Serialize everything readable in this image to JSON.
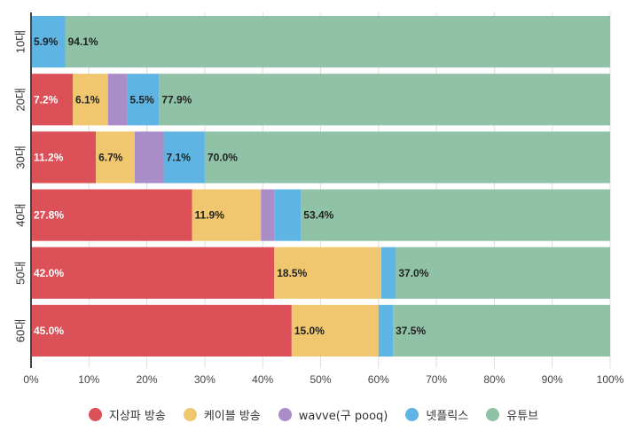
{
  "chart_data": {
    "type": "bar",
    "orientation": "horizontal-stacked-100",
    "categories": [
      "10대",
      "20대",
      "30대",
      "40대",
      "50대",
      "60대"
    ],
    "series": [
      {
        "name": "지상파 방송",
        "color": "#dc5158",
        "label_color": "#ffffff",
        "values": [
          0,
          7.2,
          11.2,
          27.8,
          42.0,
          45.0
        ]
      },
      {
        "name": "케이블 방송",
        "color": "#f0c76e",
        "label_color": "#222222",
        "values": [
          0,
          6.1,
          6.7,
          11.9,
          18.5,
          15.0
        ]
      },
      {
        "name": "wavve(구 pooq)",
        "color": "#a98cc8",
        "label_color": "#222222",
        "values": [
          0,
          3.3,
          5.0,
          2.3,
          0,
          0
        ]
      },
      {
        "name": "넷플릭스",
        "color": "#5eb4e3",
        "label_color": "#222222",
        "values": [
          5.9,
          5.5,
          7.1,
          4.6,
          2.5,
          2.5
        ]
      },
      {
        "name": "유튜브",
        "color": "#8fc2a7",
        "label_color": "#222222",
        "values": [
          94.1,
          77.9,
          70.0,
          53.4,
          37.0,
          37.5
        ]
      }
    ],
    "xticks": [
      "0%",
      "10%",
      "20%",
      "30%",
      "40%",
      "50%",
      "60%",
      "70%",
      "80%",
      "90%",
      "100%"
    ],
    "xlim": [
      0,
      100
    ],
    "label_min": 5.5,
    "legend": "bottom",
    "grid": true
  }
}
